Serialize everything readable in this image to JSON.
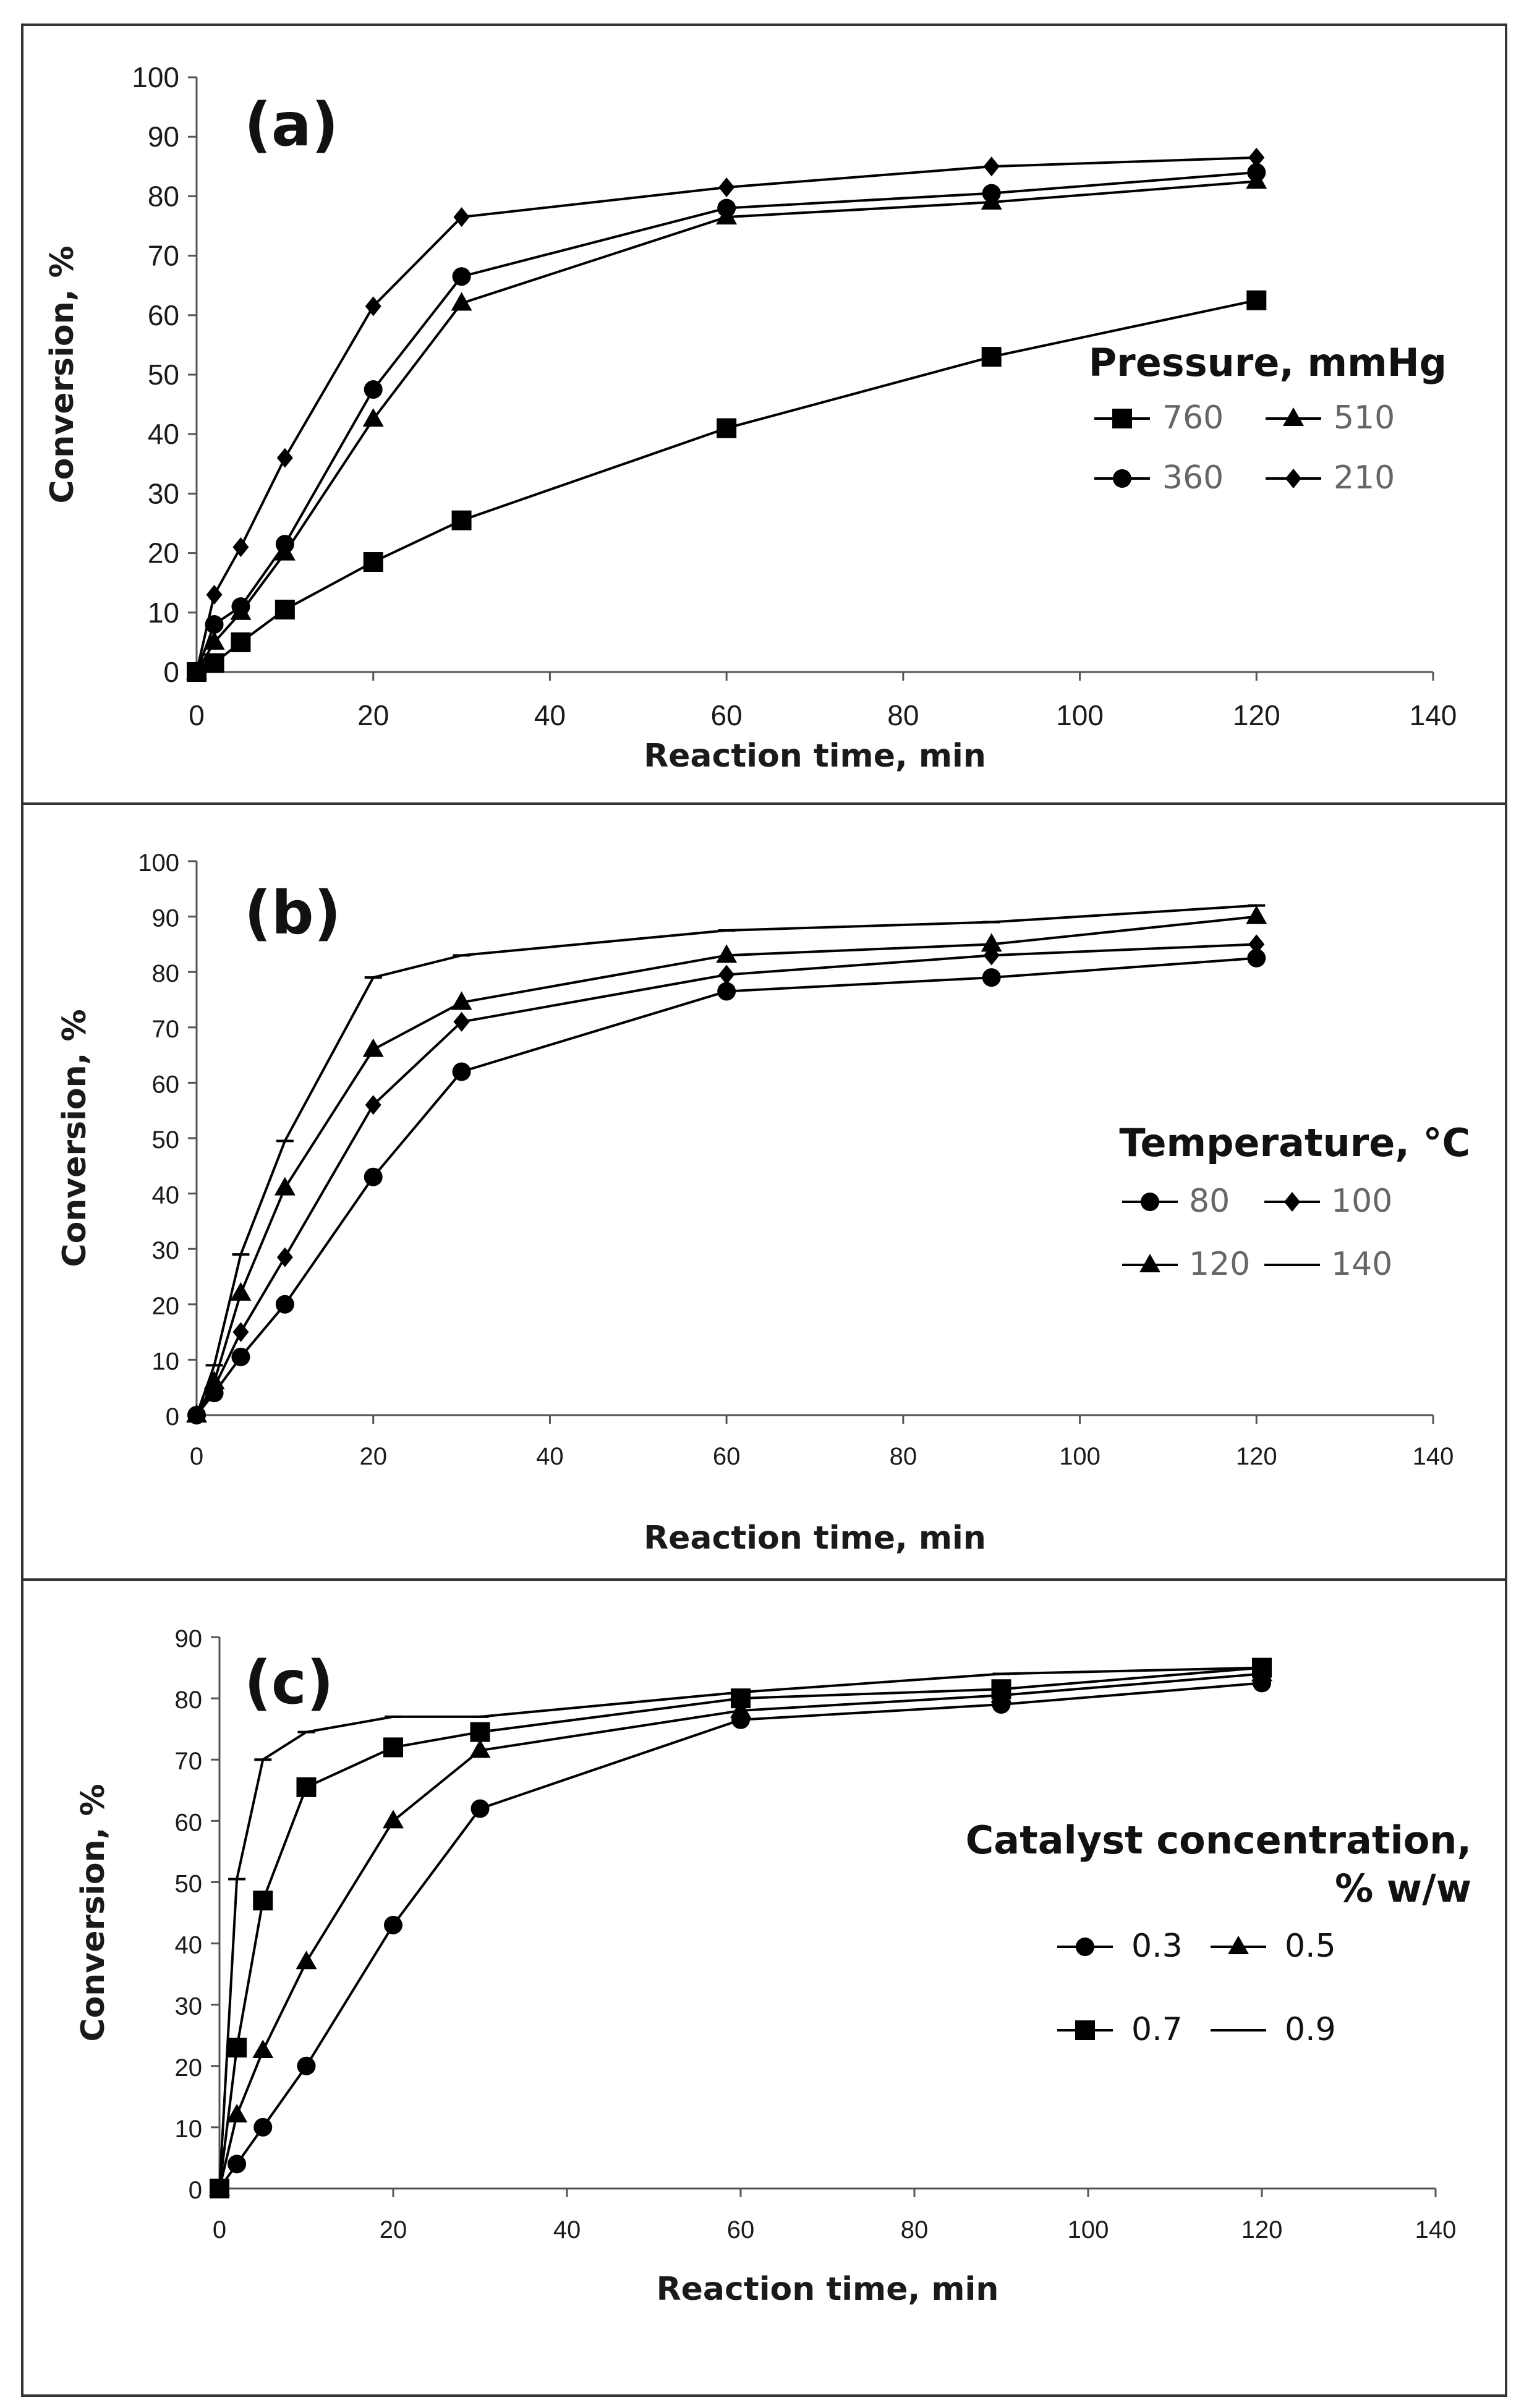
{
  "chart_data": [
    {
      "type": "line",
      "panel_label": "(a)",
      "xlabel": "Reaction time, min",
      "ylabel": "Conversion, %",
      "xlim": [
        0,
        140
      ],
      "ylim": [
        0,
        100
      ],
      "xticks": [
        0,
        20,
        40,
        60,
        80,
        100,
        120,
        140
      ],
      "yticks": [
        0,
        10,
        20,
        30,
        40,
        50,
        60,
        70,
        80,
        90,
        100
      ],
      "legend_title": [
        "Pressure, mmHg"
      ],
      "legend_placement": "right",
      "x": [
        0,
        2,
        5,
        10,
        20,
        30,
        60,
        90,
        120
      ],
      "series": [
        {
          "name": "760",
          "marker": "square",
          "values": [
            0,
            1.5,
            5,
            10.5,
            18.5,
            25.5,
            41,
            53,
            62.5
          ]
        },
        {
          "name": "510",
          "marker": "triangle",
          "values": [
            0,
            5,
            10,
            20,
            42.5,
            62,
            76.5,
            79,
            82.5
          ]
        },
        {
          "name": "360",
          "marker": "circle",
          "values": [
            0,
            8,
            11,
            21.5,
            47.5,
            66.5,
            78,
            80.5,
            84
          ]
        },
        {
          "name": "210",
          "marker": "diamond",
          "values": [
            0,
            13,
            21,
            36,
            61.5,
            76.5,
            81.5,
            85,
            86.5
          ]
        }
      ]
    },
    {
      "type": "line",
      "panel_label": "(b)",
      "xlabel": "Reaction time, min",
      "ylabel": "Conversion, %",
      "xlim": [
        0,
        140
      ],
      "ylim": [
        0,
        100
      ],
      "xticks": [
        0,
        20,
        40,
        60,
        80,
        100,
        120,
        140
      ],
      "yticks": [
        0,
        10,
        20,
        30,
        40,
        50,
        60,
        70,
        80,
        90,
        100
      ],
      "legend_title": [
        "Temperature, °C"
      ],
      "legend_placement": "right",
      "x": [
        0,
        2,
        5,
        10,
        20,
        30,
        60,
        90,
        120
      ],
      "series": [
        {
          "name": "80",
          "marker": "circle",
          "values": [
            0,
            4,
            10.5,
            20,
            43,
            62,
            76.5,
            79,
            82.5
          ]
        },
        {
          "name": "100",
          "marker": "diamond",
          "values": [
            0,
            5,
            15,
            28.5,
            56,
            71,
            79.5,
            83,
            85
          ]
        },
        {
          "name": "120",
          "marker": "triangle",
          "values": [
            0,
            6,
            22,
            41,
            66,
            74.5,
            83,
            85,
            90
          ]
        },
        {
          "name": "140",
          "marker": "dash",
          "values": [
            0,
            9,
            29,
            49.5,
            79,
            83,
            87.5,
            89,
            92
          ]
        }
      ]
    },
    {
      "type": "line",
      "panel_label": "(c)",
      "xlabel": "Reaction time, min",
      "ylabel": "Conversion, %",
      "xlim": [
        0,
        140
      ],
      "ylim": [
        0,
        90
      ],
      "xticks": [
        0,
        20,
        40,
        60,
        80,
        100,
        120,
        140
      ],
      "yticks": [
        0,
        10,
        20,
        30,
        40,
        50,
        60,
        70,
        80,
        90
      ],
      "legend_title": [
        "Catalyst concentration,",
        "% w/w"
      ],
      "legend_placement": "right",
      "x": [
        0,
        2,
        5,
        10,
        20,
        30,
        60,
        90,
        120
      ],
      "series": [
        {
          "name": "0.3",
          "marker": "circle",
          "values": [
            0,
            4,
            10,
            20,
            43,
            62,
            76.5,
            79,
            82.5
          ]
        },
        {
          "name": "0.5",
          "marker": "triangle",
          "values": [
            0,
            12,
            22.5,
            37,
            60,
            71.5,
            78,
            80.5,
            84
          ]
        },
        {
          "name": "0.7",
          "marker": "square",
          "values": [
            0,
            23,
            47,
            65.5,
            72,
            74.5,
            80,
            81.5,
            85
          ]
        },
        {
          "name": "0.9",
          "marker": "dash",
          "values": [
            0,
            50.5,
            70,
            74.5,
            77,
            77,
            81,
            84,
            85
          ]
        }
      ]
    }
  ]
}
